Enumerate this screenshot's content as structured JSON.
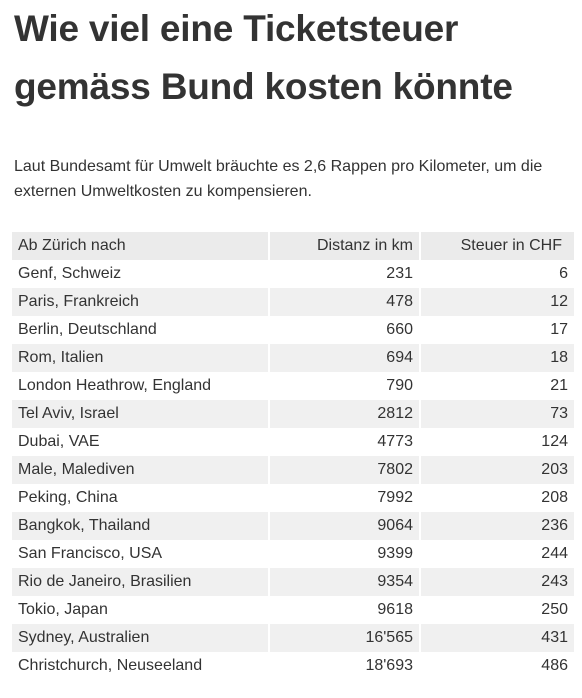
{
  "title_line1": "Wie viel eine Ticketsteuer",
  "title_line2": "gemäss Bund kosten könnte",
  "subtitle": "Laut Bundesamt für Umwelt bräuchte es 2,6 Rappen pro Kilometer, um die externen Umweltkosten zu kompensieren.",
  "table": {
    "headers": [
      "Ab Zürich nach",
      "Distanz in km",
      "Steuer in CHF"
    ],
    "rows": [
      [
        "Genf, Schweiz",
        "231",
        "6"
      ],
      [
        "Paris, Frankreich",
        "478",
        "12"
      ],
      [
        "Berlin, Deutschland",
        "660",
        "17"
      ],
      [
        "Rom, Italien",
        "694",
        "18"
      ],
      [
        "London Heathrow, England",
        "790",
        "21"
      ],
      [
        "Tel Aviv, Israel",
        "2812",
        "73"
      ],
      [
        "Dubai, VAE",
        "4773",
        "124"
      ],
      [
        "Male, Malediven",
        "7802",
        "203"
      ],
      [
        "Peking, China",
        "7992",
        "208"
      ],
      [
        "Bangkok, Thailand",
        "9064",
        "236"
      ],
      [
        "San Francisco, USA",
        "9399",
        "244"
      ],
      [
        "Rio de Janeiro, Brasilien",
        "9354",
        "243"
      ],
      [
        "Tokio, Japan",
        "9618",
        "250"
      ],
      [
        "Sydney, Australien",
        "16'565",
        "431"
      ],
      [
        "Christchurch, Neuseeland",
        "18'693",
        "486"
      ]
    ]
  }
}
